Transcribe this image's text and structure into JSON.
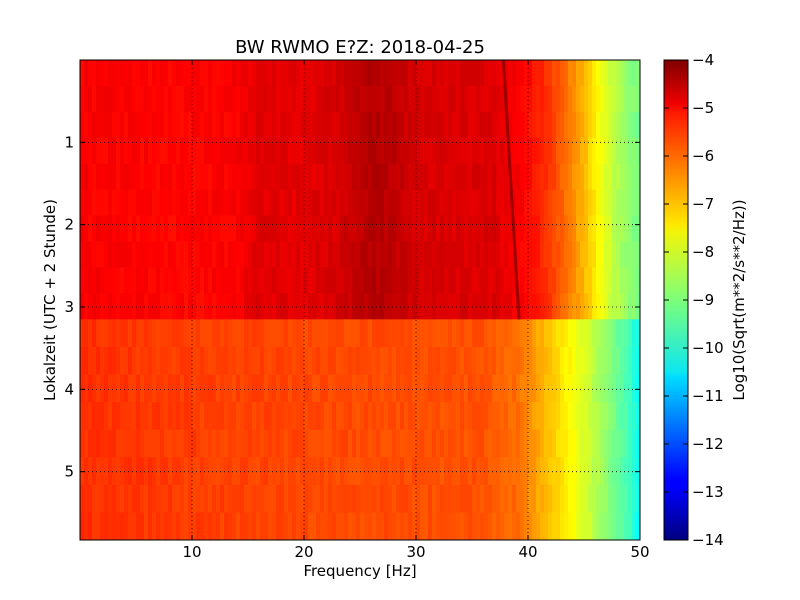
{
  "chart_data": {
    "type": "heatmap",
    "title": "BW RWMO E?Z: 2018-04-25",
    "xlabel": "Frequency [Hz]",
    "ylabel": "Lokalzeit (UTC + 2 Stunde)",
    "xlim": [
      0,
      50
    ],
    "ylim": [
      5.83,
      0.0
    ],
    "x_ticks": [
      10,
      20,
      30,
      40,
      50
    ],
    "x_tick_labels": [
      "10",
      "20",
      "30",
      "40",
      "50"
    ],
    "y_ticks": [
      1,
      2,
      3,
      4,
      5
    ],
    "y_tick_labels": [
      "1",
      "2",
      "3",
      "4",
      "5"
    ],
    "grid": true,
    "grid_style": "dotted",
    "colormap": "jet",
    "colorbar": {
      "label": "Log10(Sqrt(m**2/s**2/Hz))",
      "range": [
        -14,
        -4
      ],
      "ticks": [
        -4,
        -5,
        -6,
        -7,
        -8,
        -9,
        -10,
        -11,
        -12,
        -13,
        -14
      ],
      "tick_labels": [
        "−4",
        "−5",
        "−6",
        "−7",
        "−8",
        "−9",
        "−10",
        "−11",
        "−12",
        "−13",
        "−14"
      ]
    },
    "segments": [
      {
        "time_range": [
          0.0,
          3.15
        ],
        "spectrum": [
          {
            "f": 0,
            "v": -5.2
          },
          {
            "f": 5,
            "v": -5.25
          },
          {
            "f": 10,
            "v": -5.3
          },
          {
            "f": 14,
            "v": -5.2
          },
          {
            "f": 16,
            "v": -4.95
          },
          {
            "f": 20,
            "v": -5.0
          },
          {
            "f": 23,
            "v": -4.85
          },
          {
            "f": 26,
            "v": -4.5
          },
          {
            "f": 28,
            "v": -4.6
          },
          {
            "f": 30,
            "v": -4.85
          },
          {
            "f": 34,
            "v": -4.9
          },
          {
            "f": 37,
            "v": -4.9
          },
          {
            "f": 40,
            "v": -5.3
          },
          {
            "f": 42,
            "v": -5.8
          },
          {
            "f": 44,
            "v": -6.6
          },
          {
            "f": 45.5,
            "v": -7.3
          },
          {
            "f": 47,
            "v": -8.1
          },
          {
            "f": 48.5,
            "v": -8.7
          },
          {
            "f": 50,
            "v": -9.1
          }
        ],
        "narrow_line": {
          "freq_start": 37.8,
          "freq_end": 39.2,
          "time_start": 0.0,
          "time_end": 3.15,
          "v": -4.3
        }
      },
      {
        "time_range": [
          3.15,
          5.83
        ],
        "spectrum": [
          {
            "f": 0,
            "v": -5.7
          },
          {
            "f": 10,
            "v": -5.85
          },
          {
            "f": 20,
            "v": -5.95
          },
          {
            "f": 30,
            "v": -6.0
          },
          {
            "f": 36,
            "v": -6.05
          },
          {
            "f": 39,
            "v": -6.3
          },
          {
            "f": 41,
            "v": -6.9
          },
          {
            "f": 43,
            "v": -7.5
          },
          {
            "f": 45,
            "v": -8.1
          },
          {
            "f": 47,
            "v": -8.8
          },
          {
            "f": 49,
            "v": -9.6
          },
          {
            "f": 50,
            "v": -10.2
          }
        ]
      }
    ]
  }
}
